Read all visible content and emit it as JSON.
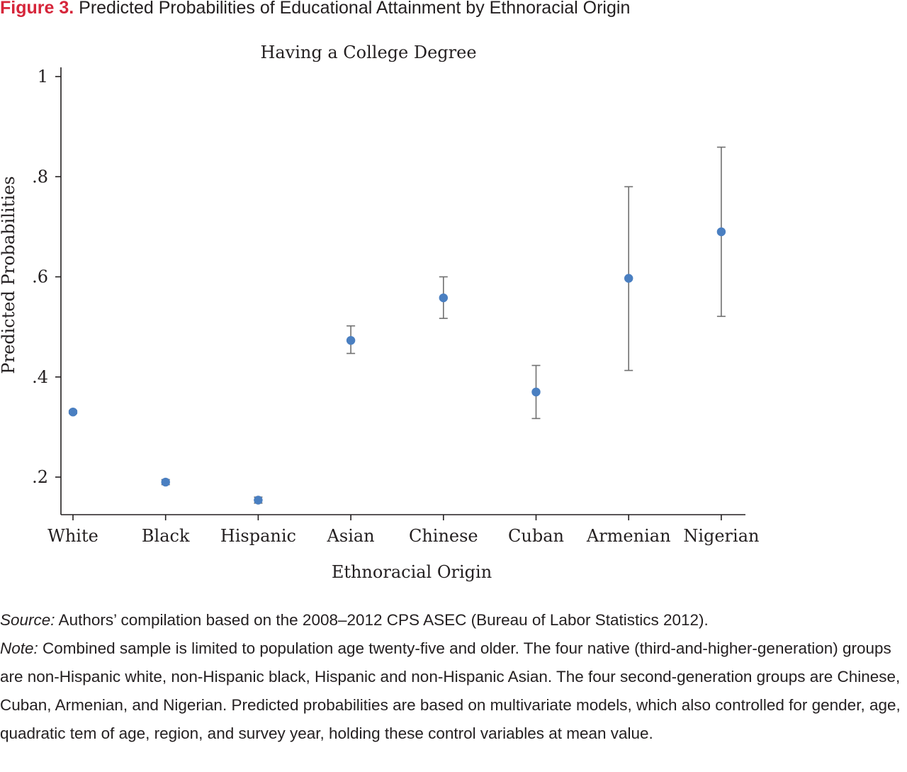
{
  "figure": {
    "label": "Figure 3.",
    "caption": "Predicted Probabilities of Educational Attainment by Ethnoracial Origin"
  },
  "chart_data": {
    "type": "scatter",
    "title": "Having a College Degree",
    "xlabel": "Ethnoracial Origin",
    "ylabel": "Predicted Probabilities",
    "categories": [
      "White",
      "Black",
      "Hispanic",
      "Asian",
      "Chinese",
      "Cuban",
      "Armenian",
      "Nigerian"
    ],
    "values": [
      0.33,
      0.19,
      0.154,
      0.473,
      0.558,
      0.37,
      0.597,
      0.69
    ],
    "ci_lower": [
      0.327,
      0.185,
      0.148,
      0.447,
      0.517,
      0.317,
      0.413,
      0.521
    ],
    "ci_upper": [
      0.333,
      0.195,
      0.16,
      0.502,
      0.6,
      0.423,
      0.78,
      0.859
    ],
    "yticks": [
      0.2,
      0.4,
      0.6,
      0.8,
      1
    ],
    "ytick_labels": [
      ".2",
      ".4",
      ".6",
      ".8",
      "1"
    ],
    "ylim": [
      0.13,
      1.02
    ],
    "grid": false,
    "marker_color": "#4a7fc1",
    "errorbar_color": "#707070"
  },
  "notes": {
    "source_label": "Source:",
    "source_text": " Authors’ compilation based on the 2008–2012 CPS ASEC (Bureau of Labor Statistics 2012).",
    "note_label": "Note:",
    "note_text": " Combined sample is limited to population age twenty-five and older. The four native (third-and-higher-generation) groups are non-Hispanic white, non-Hispanic black, Hispanic and non-Hispanic Asian. The four second-generation groups are Chinese, Cuban, Armenian, and Nigerian. Predicted probabilities are based on multivariate models, which also controlled for gender, age, quadratic tem of age, region, and survey year, holding these control variables at mean value."
  }
}
